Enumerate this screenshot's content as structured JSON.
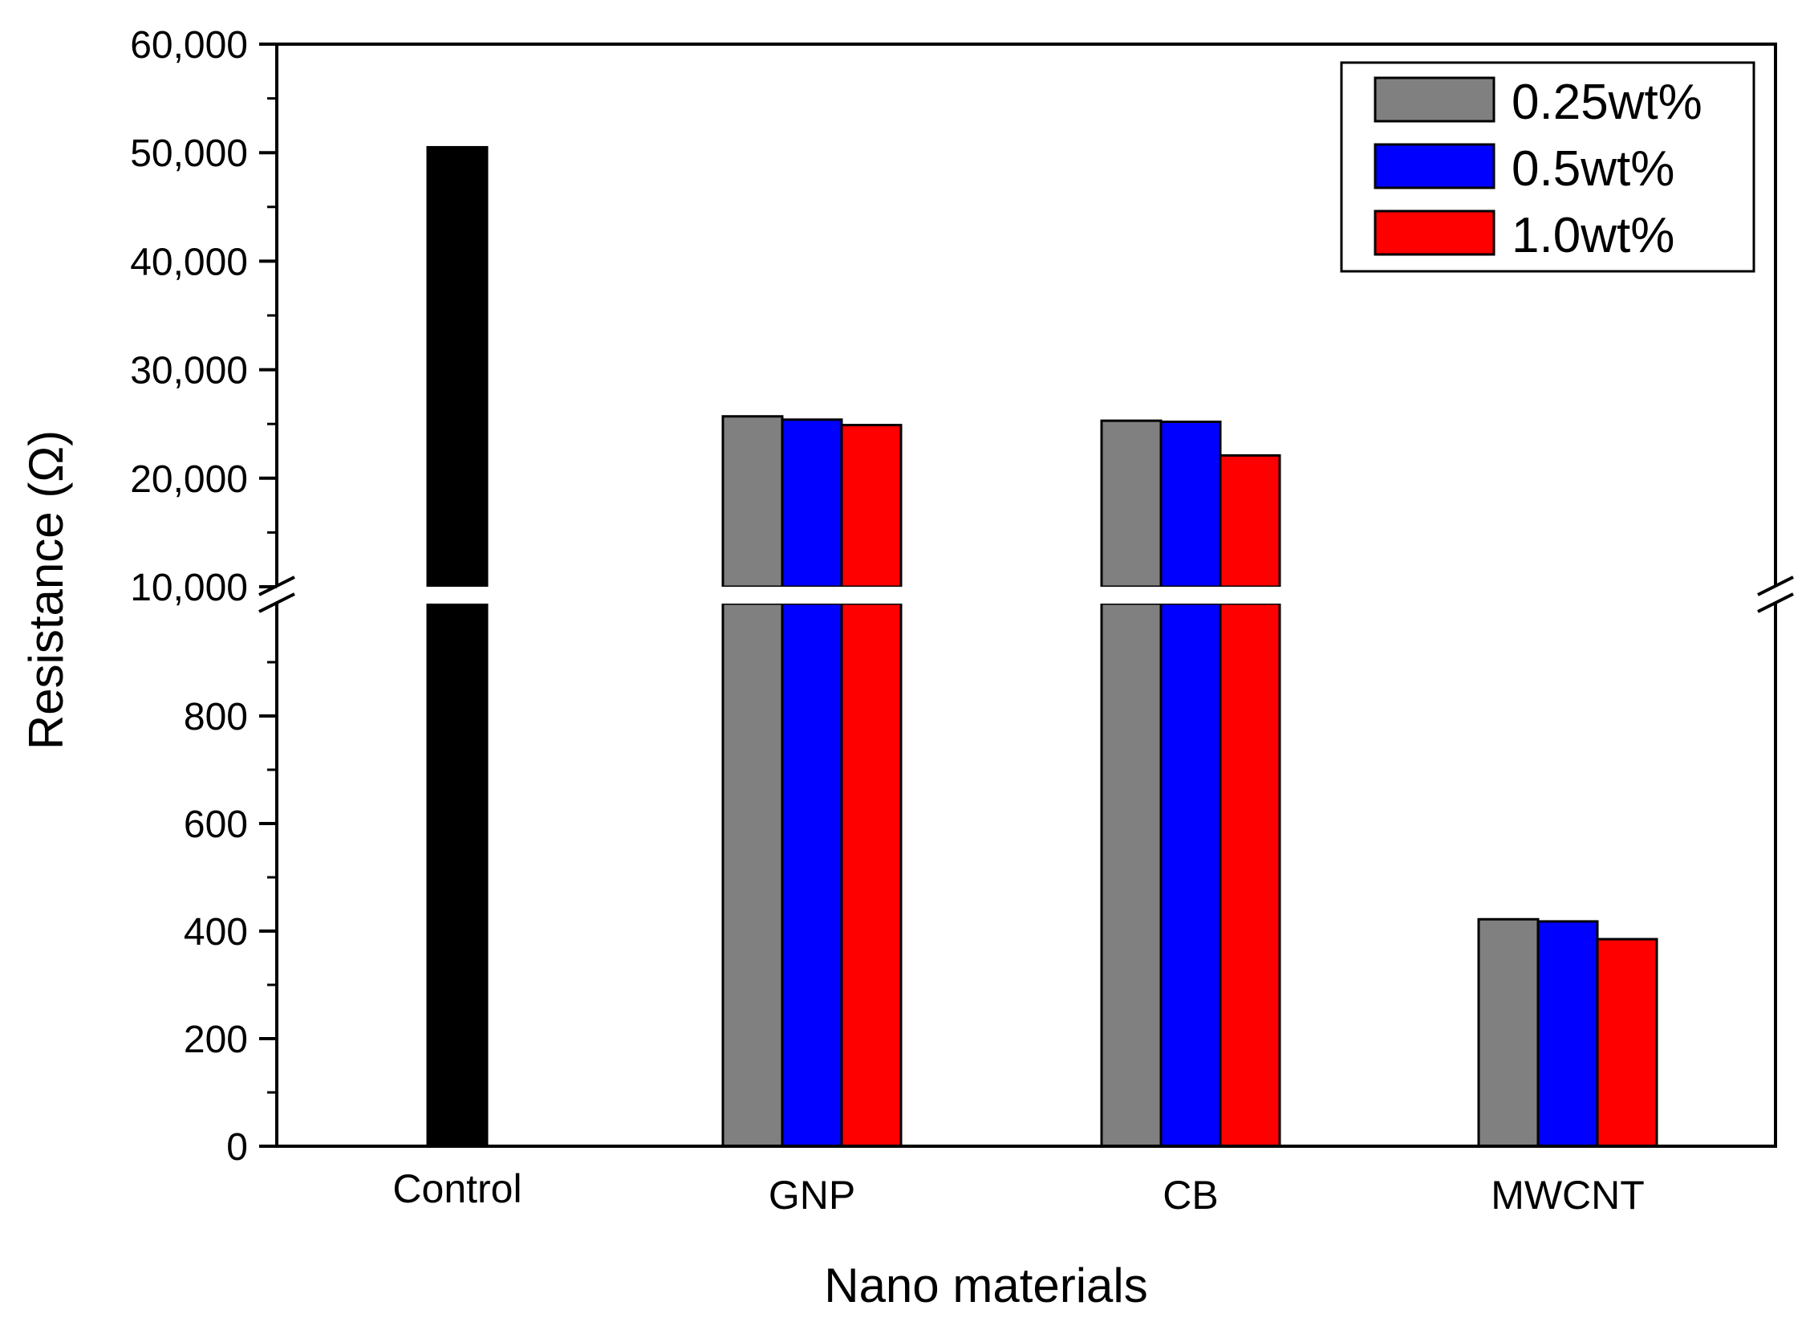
{
  "chart_data": {
    "type": "bar",
    "title": "",
    "xlabel": "Nano materials",
    "ylabel": "Resistance (Ω)",
    "categories": [
      "Control",
      "GNP",
      "CB",
      "MWCNT"
    ],
    "control": {
      "name": "Control",
      "value": 50500,
      "color": "#000000"
    },
    "series": [
      {
        "name": "0.25wt%",
        "color": "#808080",
        "values": [
          null,
          25700,
          25300,
          422
        ]
      },
      {
        "name": "0.5wt%",
        "color": "#0000ff",
        "values": [
          null,
          25400,
          25200,
          418
        ]
      },
      {
        "name": "1.0wt%",
        "color": "#ff0000",
        "values": [
          null,
          24900,
          22100,
          385
        ]
      }
    ],
    "y_axis_break": {
      "lower": {
        "range": [
          0,
          1000
        ],
        "ticks": [
          0,
          200,
          400,
          600,
          800
        ],
        "tick_labels": [
          "0",
          "200",
          "400",
          "600",
          "800"
        ]
      },
      "upper": {
        "range": [
          10000,
          60000
        ],
        "ticks": [
          10000,
          20000,
          30000,
          40000,
          50000,
          60000
        ],
        "tick_labels": [
          "10,000",
          "20,000",
          "30,000",
          "40,000",
          "50,000",
          "60,000"
        ]
      }
    },
    "legend_position": "top-right",
    "grid": false
  }
}
